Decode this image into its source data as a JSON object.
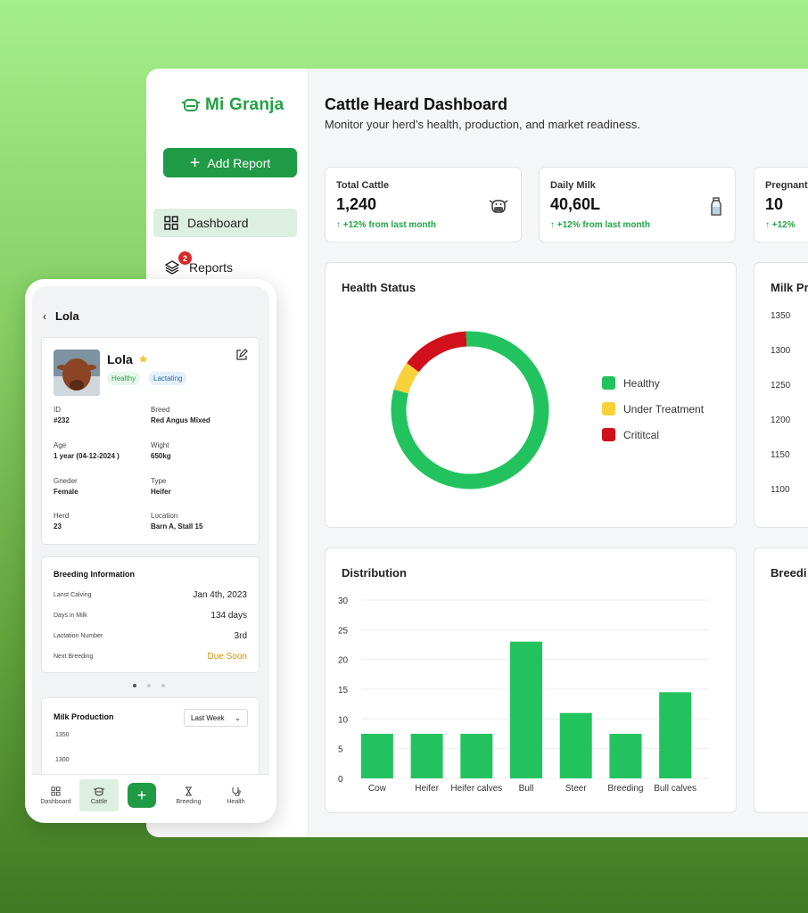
{
  "app": {
    "name": "Mi Granja"
  },
  "sidebar": {
    "add_report": "Add Report",
    "items": [
      {
        "label": "Dashboard"
      },
      {
        "label": "Reports",
        "badge": "2"
      }
    ]
  },
  "header": {
    "title": "Cattle Heard Dashboard",
    "subtitle": "Monitor your herd’s health, production, and market readiness."
  },
  "stats": [
    {
      "label": "Total Cattle",
      "value": "1,240",
      "trend": "+12% from last month",
      "icon": "cow-icon"
    },
    {
      "label": "Daily Milk",
      "value": "40,60L",
      "trend": "+12% from last month",
      "icon": "milk-bottle-icon"
    },
    {
      "label": "Pregnant",
      "value": "10",
      "trend": "+12%"
    }
  ],
  "health": {
    "title": "Health Status",
    "legend": [
      {
        "label": "Healthy",
        "color": "#22c35e",
        "value": 80
      },
      {
        "label": "Under Treatment",
        "color": "#f7d23a",
        "value": 6
      },
      {
        "label": "Crititcal",
        "color": "#d0111b",
        "value": 14
      }
    ]
  },
  "milk_panel": {
    "title": "Milk Pr",
    "y_ticks": [
      "1350",
      "1300",
      "1250",
      "1200",
      "1150",
      "1100"
    ]
  },
  "breeding_panel": {
    "title": "Breedi"
  },
  "distribution": {
    "title": "Distribution"
  },
  "chart_data": {
    "type": "bar",
    "title": "Distribution",
    "categories": [
      "Cow",
      "Heifer",
      "Heifer calves",
      "Bull",
      "Steer",
      "Breeding",
      "Bull calves"
    ],
    "values": [
      7.5,
      7.5,
      7.5,
      23,
      11,
      7.5,
      14.5
    ],
    "y_ticks": [
      "30",
      "25",
      "20",
      "15",
      "10",
      "5",
      "0"
    ],
    "ylim": [
      0,
      30
    ],
    "grid": true,
    "color": "#22c35e"
  },
  "mobile": {
    "title": "Lola",
    "animal": {
      "name": "Lola",
      "tags": [
        "Healthy",
        "Lactating"
      ],
      "fields": [
        {
          "label": "ID",
          "value": "#232"
        },
        {
          "label": "Breed",
          "value": "Red Angus Mixed"
        },
        {
          "label": "Age",
          "value": "1 year (04-12-2024 )"
        },
        {
          "label": "Wight",
          "value": "650kg"
        },
        {
          "label": "Gneder",
          "value": "Female"
        },
        {
          "label": "Type",
          "value": "Heifer"
        },
        {
          "label": "Herd",
          "value": "23"
        },
        {
          "label": "Location",
          "value": "Barn A, Stall 15"
        }
      ]
    },
    "breeding": {
      "title": "Breeding Information",
      "rows": [
        {
          "label": "Lanst Calving",
          "value": "Jan 4th, 2023"
        },
        {
          "label": "Days in Milk",
          "value": "134 days"
        },
        {
          "label": "Lactation Number",
          "value": "3rd"
        },
        {
          "label": "Next Breeding",
          "value": "Due Soon"
        }
      ]
    },
    "milk": {
      "title": "Milk Production",
      "period": "Last Week",
      "y_ticks": [
        "1350",
        "1300"
      ]
    },
    "nav": [
      "Dashboard",
      "Cattle",
      "Breeding",
      "Health"
    ]
  }
}
